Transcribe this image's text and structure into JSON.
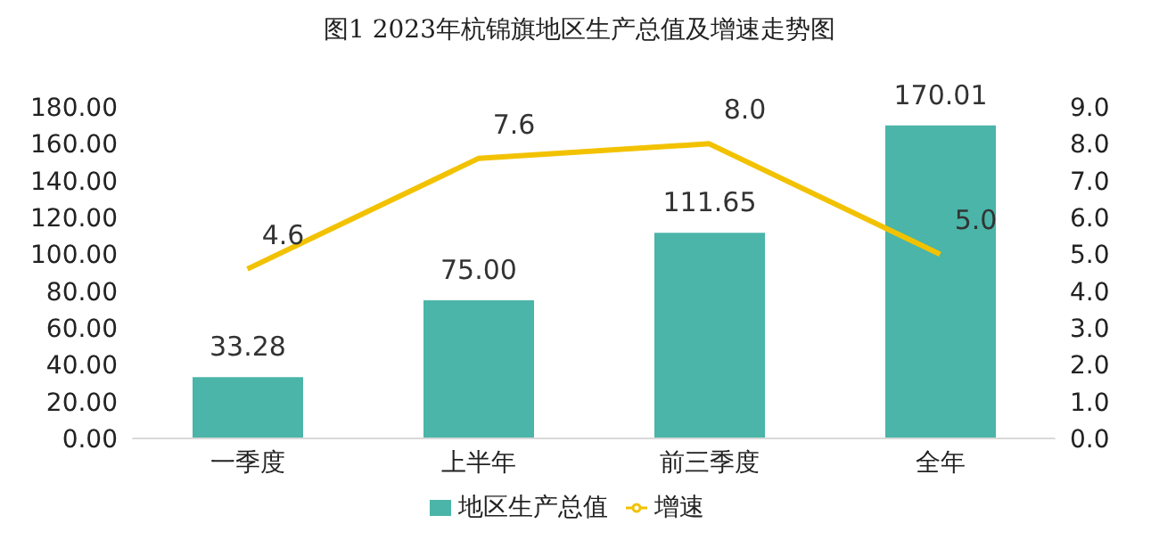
{
  "chart_data": {
    "type": "bar",
    "title": "图1 2023年杭锦旗地区生产总值及增速走势图",
    "categories": [
      "一季度",
      "上半年",
      "前三季度",
      "全年"
    ],
    "series": [
      {
        "name": "地区生产总值",
        "color": "#4ab5a8",
        "values": [
          33.28,
          75.0,
          111.65,
          170.01
        ],
        "value_labels": [
          "33.28",
          "75.00",
          "111.65",
          "170.01"
        ]
      },
      {
        "name": "增速",
        "type": "line",
        "axis": "y2",
        "color": "#f2c200",
        "values": [
          4.6,
          7.6,
          8.0,
          5.0
        ],
        "value_labels": [
          "4.6",
          "7.6",
          "8.0",
          "5.0"
        ]
      }
    ],
    "ylim": [
      0,
      180
    ],
    "yticks": [
      {
        "value": 0,
        "label": "0.00"
      },
      {
        "value": 20,
        "label": "20.00"
      },
      {
        "value": 40,
        "label": "40.00"
      },
      {
        "value": 60,
        "label": "60.00"
      },
      {
        "value": 80,
        "label": "80.00"
      },
      {
        "value": 100,
        "label": "100.00"
      },
      {
        "value": 120,
        "label": "120.00"
      },
      {
        "value": 140,
        "label": "140.00"
      },
      {
        "value": 160,
        "label": "160.00"
      },
      {
        "value": 180,
        "label": "180.00"
      }
    ],
    "y2lim": [
      0,
      9
    ],
    "y2ticks": [
      {
        "value": 0,
        "label": "0.0"
      },
      {
        "value": 1,
        "label": "1.0"
      },
      {
        "value": 2,
        "label": "2.0"
      },
      {
        "value": 3,
        "label": "3.0"
      },
      {
        "value": 4,
        "label": "4.0"
      },
      {
        "value": 5,
        "label": "5.0"
      },
      {
        "value": 6,
        "label": "6.0"
      },
      {
        "value": 7,
        "label": "7.0"
      },
      {
        "value": 8,
        "label": "8.0"
      },
      {
        "value": 9,
        "label": "9.0"
      }
    ],
    "grid": false,
    "legend": "bottom",
    "marker": "none",
    "line_style": "solid"
  }
}
